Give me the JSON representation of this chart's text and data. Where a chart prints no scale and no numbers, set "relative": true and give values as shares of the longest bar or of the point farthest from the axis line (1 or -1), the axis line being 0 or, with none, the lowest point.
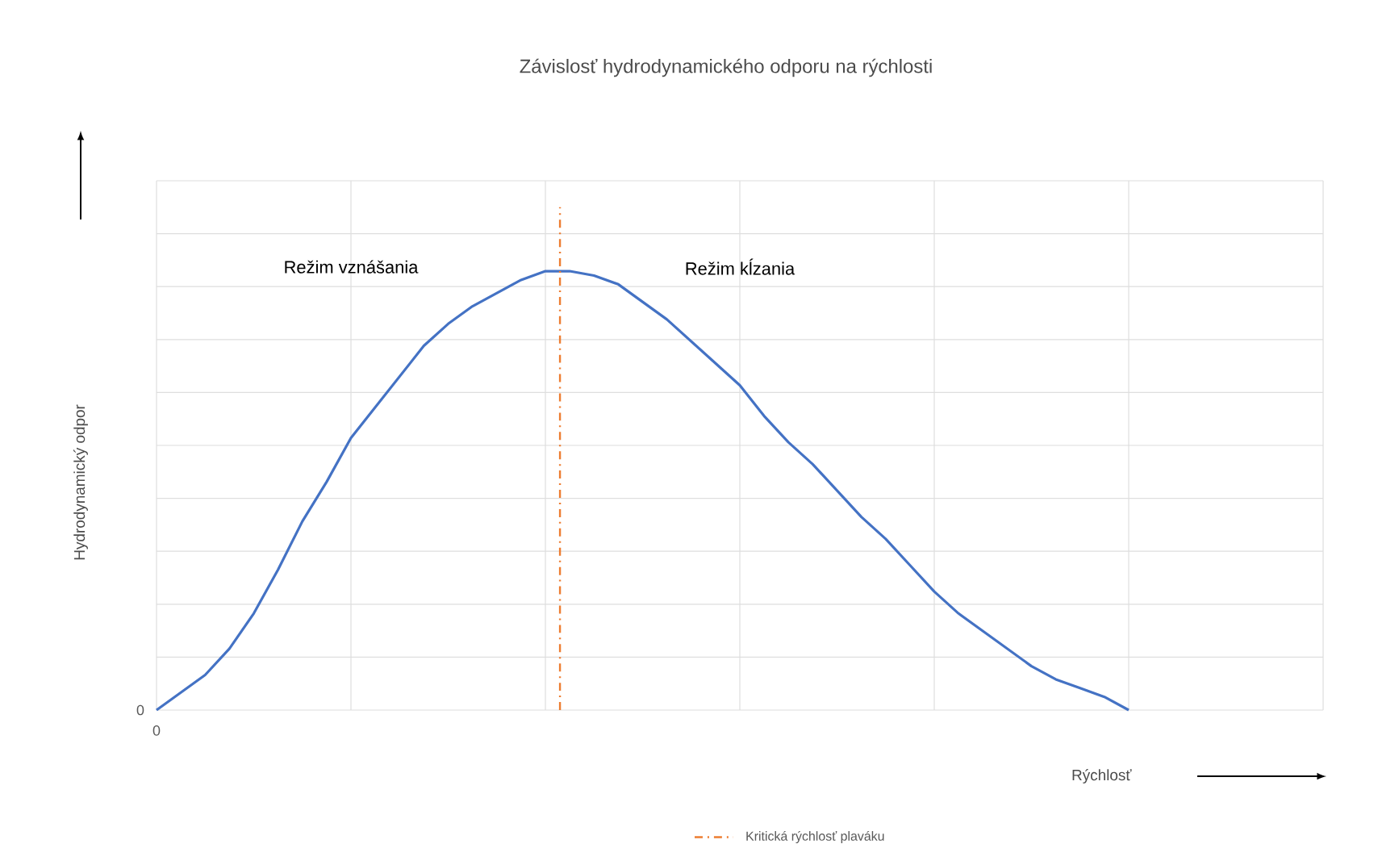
{
  "chart_data": {
    "type": "line",
    "title": "Závislosť hydrodynamického odporu na rýchlosti",
    "xlabel": "Rýchlosť",
    "ylabel": "Hydrodynamický odpor",
    "relative": true,
    "categories": [
      null,
      null,
      null,
      null,
      null,
      null,
      null,
      null,
      null,
      null,
      null,
      null,
      null,
      null,
      null,
      null,
      null,
      null,
      null,
      null,
      null,
      null,
      null,
      null,
      null,
      null,
      null,
      null,
      null,
      null,
      null,
      null,
      null,
      null,
      null,
      null,
      null,
      null,
      null,
      null,
      null,
      null,
      null,
      null,
      null,
      null,
      null,
      null,
      null
    ],
    "series": [
      {
        "color": "#4472c4",
        "values": [
          0.0,
          0.04,
          0.08,
          0.14,
          0.22,
          0.32,
          0.43,
          0.52,
          0.62,
          0.69,
          0.76,
          0.83,
          0.88,
          0.92,
          0.95,
          0.98,
          1.0,
          1.0,
          0.99,
          0.97,
          0.93,
          0.89,
          0.84,
          0.79,
          0.74,
          0.67,
          0.61,
          0.56,
          0.5,
          0.44,
          0.39,
          0.33,
          0.27,
          0.22,
          0.18,
          0.14,
          0.1,
          0.07,
          0.05,
          0.03,
          0.0,
          null,
          null,
          null,
          null,
          null,
          null,
          null,
          null
        ]
      }
    ],
    "annotations": [
      "Režim vznášania",
      "Režim kĺzania",
      "0",
      "0",
      "Kritická rýchlosť plaváku"
    ],
    "grid": true,
    "marker": "none",
    "line_style": "solid"
  }
}
